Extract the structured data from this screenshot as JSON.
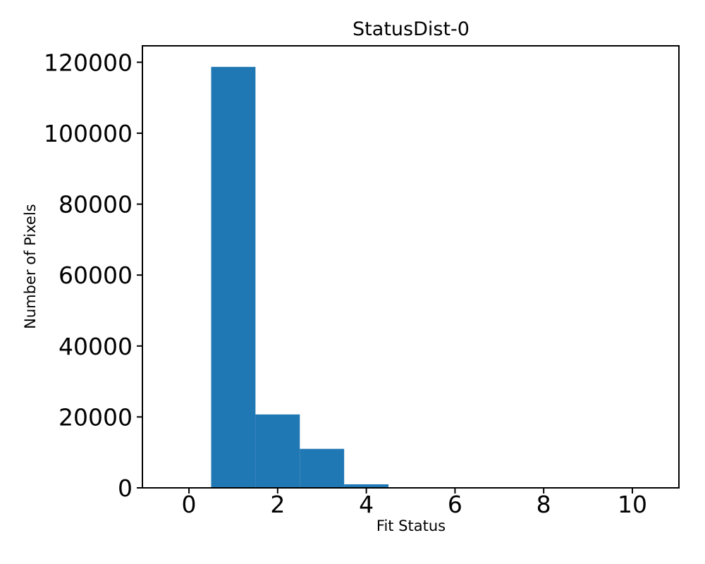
{
  "chart_data": {
    "type": "bar",
    "title": "StatusDist-0",
    "xlabel": "Fit Status",
    "ylabel": "Number of Pixels",
    "categories": [
      1,
      2,
      3,
      4
    ],
    "values": [
      118700,
      20700,
      11000,
      1000
    ],
    "bin_width": 1,
    "xticks": [
      0,
      2,
      4,
      6,
      8,
      10
    ],
    "yticks": [
      0,
      20000,
      40000,
      60000,
      80000,
      100000,
      120000
    ],
    "xlim": [
      -1.05,
      11.05
    ],
    "ylim": [
      0,
      124635
    ],
    "grid": false,
    "legend": "none",
    "bar_color": "#1f77b4",
    "axis_color": "#000000",
    "background_color": "#ffffff"
  }
}
